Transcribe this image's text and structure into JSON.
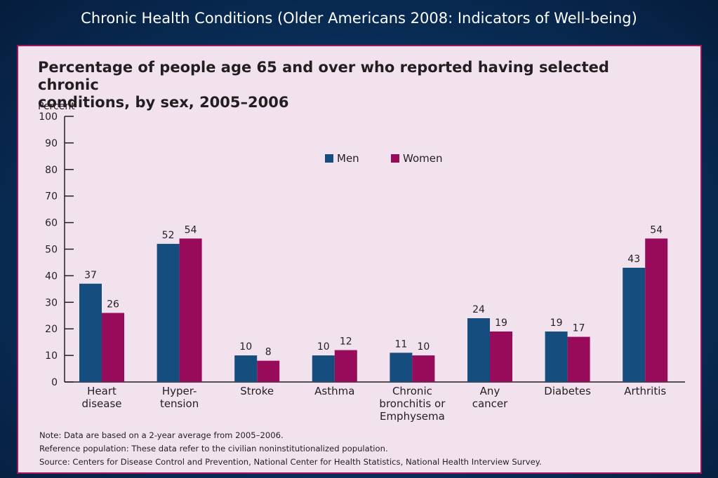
{
  "slide_title": "Chronic Health Conditions (Older Americans 2008:  Indicators of Well-being)",
  "chart_data": {
    "type": "bar",
    "title": "Percentage of people age 65 and over who reported having selected chronic conditions, by sex, 2005–2006",
    "title_lines": [
      "Percentage of people age 65 and over who reported having selected chronic",
      "conditions, by sex, 2005–2006"
    ],
    "ylabel": "Percent",
    "xlabel": "",
    "ylim": [
      0,
      100
    ],
    "yticks": [
      0,
      10,
      20,
      30,
      40,
      50,
      60,
      70,
      80,
      90,
      100
    ],
    "grid": false,
    "legend_position": "top-center",
    "categories": [
      "Heart disease",
      "Hypertension",
      "Stroke",
      "Asthma",
      "Chronic bronchitis or Emphysema",
      "Any cancer",
      "Diabetes",
      "Arthritis"
    ],
    "category_label_lines": [
      [
        "Heart",
        "disease"
      ],
      [
        "Hyper-",
        "tension"
      ],
      [
        "Stroke"
      ],
      [
        "Asthma"
      ],
      [
        "Chronic",
        "bronchitis or",
        "Emphysema"
      ],
      [
        "Any",
        "cancer"
      ],
      [
        "Diabetes"
      ],
      [
        "Arthritis"
      ]
    ],
    "series": [
      {
        "name": "Men",
        "color": "#144d7e",
        "values": [
          37,
          52,
          10,
          10,
          11,
          24,
          19,
          43
        ]
      },
      {
        "name": "Women",
        "color": "#970b5a",
        "values": [
          26,
          54,
          8,
          12,
          10,
          19,
          17,
          54
        ]
      }
    ]
  },
  "notes": [
    "Note: Data are based on a 2-year average from 2005–2006.",
    "Reference population: These data refer to the civilian noninstitutionalized population.",
    "Source: Centers for Disease Control and Prevention, National Center for Health Statistics, National Health Interview Survey."
  ]
}
